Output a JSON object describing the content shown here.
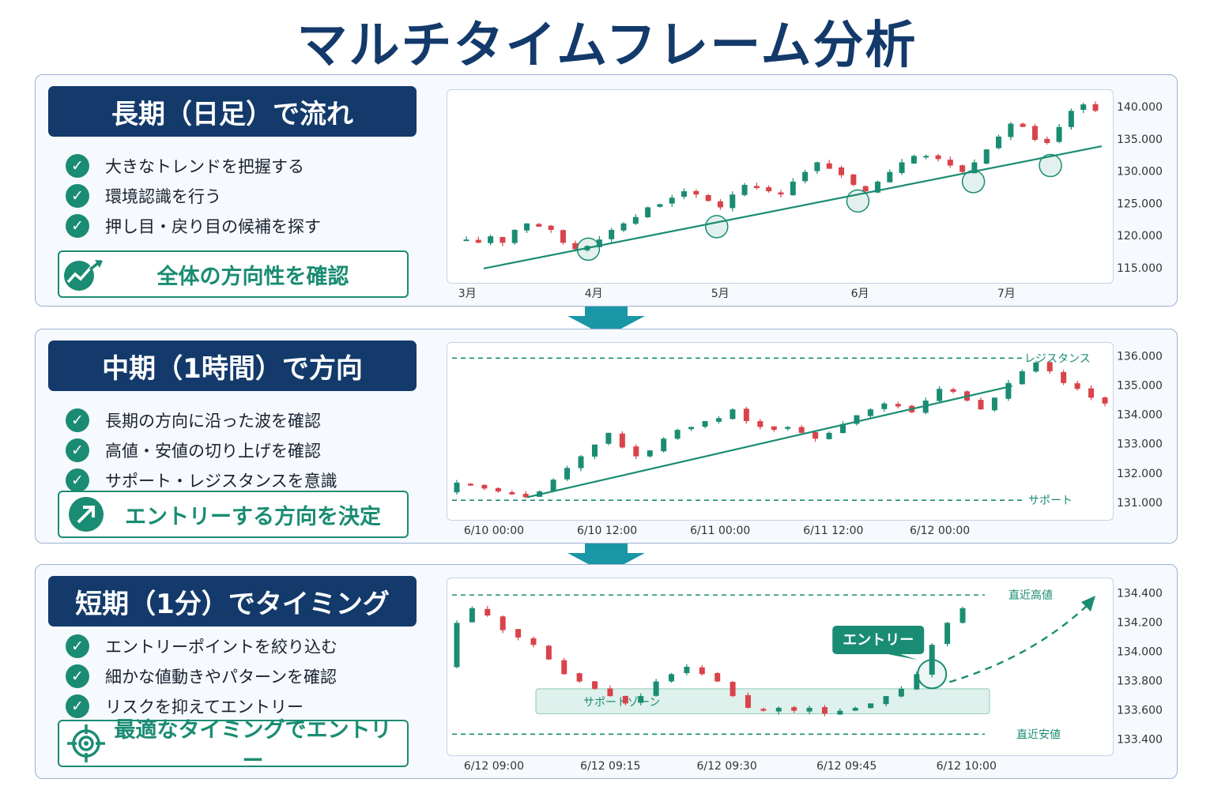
{
  "page": {
    "title": "マルチタイムフレーム分析"
  },
  "colors": {
    "navy": "#133a6b",
    "teal": "#1a8c73",
    "up": "#1a8c73",
    "down": "#d9434b"
  },
  "panels": [
    {
      "tag": "長期（日足）で流れ",
      "bullets": [
        "大きなトレンドを把握する",
        "環境認識を行う",
        "押し目・戻り目の候補を探す"
      ],
      "conclusion": {
        "label": "全体の方向性を確認",
        "icon": "trend-up-icon"
      }
    },
    {
      "tag": "中期（1時間）で方向",
      "bullets": [
        "長期の方向に沿った波を確認",
        "高値・安値の切り上げを確認",
        "サポート・レジスタンスを意識"
      ],
      "conclusion": {
        "label": "エントリーする方向を決定",
        "icon": "arrow-up-right-icon"
      }
    },
    {
      "tag": "短期（1分）でタイミング",
      "bullets": [
        "エントリーポイントを絞り込む",
        "細かな値動きやパターンを確認",
        "リスクを抑えてエントリー"
      ],
      "conclusion": {
        "label": "最適なタイミングでエントリー",
        "icon": "target-icon"
      }
    }
  ],
  "chart_data": [
    {
      "type": "candlestick",
      "timeframe": "daily",
      "x_labels": [
        "3月",
        "4月",
        "5月",
        "6月",
        "7月"
      ],
      "ylim": [
        114,
        141.5
      ],
      "y_ticks": [
        "115.000",
        "120.000",
        "125.000",
        "130.000",
        "135.000",
        "140.000"
      ],
      "y_tick_values": [
        115,
        120,
        125,
        130,
        135,
        140
      ],
      "close_path": [
        119.5,
        119,
        120,
        119,
        121,
        122,
        121.5,
        121,
        119,
        118,
        118.5,
        119.5,
        121,
        122,
        123,
        124.5,
        125,
        126,
        127,
        126.5,
        125.5,
        124.5,
        126.5,
        128,
        127.5,
        127,
        126.5,
        128.5,
        130,
        131.5,
        130.5,
        129.5,
        128,
        127,
        128.5,
        130,
        131.5,
        132.5,
        132.5,
        132,
        131,
        130,
        131.5,
        133.5,
        135.5,
        137.5,
        137,
        135,
        134.5,
        137,
        139.5,
        140.5,
        139.5
      ],
      "trendline": [
        [
          0,
          115
        ],
        [
          1,
          134
        ]
      ],
      "touch_points": [
        118,
        121.5,
        125.5,
        128.5,
        131
      ]
    },
    {
      "type": "candlestick",
      "timeframe": "1h",
      "x_labels": [
        "6/10 00:00",
        "6/10 12:00",
        "6/11 00:00",
        "6/11 12:00",
        "6/12 00:00"
      ],
      "ylim": [
        130.7,
        136.2
      ],
      "y_ticks": [
        "131.000",
        "132.000",
        "133.000",
        "134.000",
        "135.000",
        "136.000"
      ],
      "y_tick_values": [
        131,
        132,
        133,
        134,
        135,
        136
      ],
      "close_path": [
        131.7,
        131.6,
        131.5,
        131.4,
        131.3,
        131.2,
        131.4,
        131.8,
        132.2,
        132.6,
        133,
        133.4,
        132.9,
        132.6,
        132.8,
        133.2,
        133.5,
        133.6,
        133.8,
        133.9,
        134.2,
        133.8,
        133.6,
        133.5,
        133.6,
        133.4,
        133.2,
        133.4,
        133.7,
        134,
        134.2,
        134.4,
        134.3,
        134.1,
        134.5,
        134.9,
        134.8,
        134.5,
        134.2,
        134.6,
        135.1,
        135.5,
        135.8,
        135.5,
        135.1,
        134.9,
        134.6,
        134.4
      ],
      "trendline": [
        [
          0.08,
          131.2
        ],
        [
          0.85,
          135
        ]
      ],
      "resistance": {
        "value": 135.95,
        "label": "レジスタンス"
      },
      "support": {
        "value": 131.1,
        "label": "サポート"
      }
    },
    {
      "type": "candlestick",
      "timeframe": "1m",
      "x_labels": [
        "6/12 09:00",
        "6/12 09:15",
        "6/12 09:30",
        "6/12 09:45",
        "6/12 10:00"
      ],
      "ylim": [
        133.35,
        134.45
      ],
      "y_ticks": [
        "133.400",
        "133.600",
        "133.800",
        "134.000",
        "134.200",
        "134.400"
      ],
      "y_tick_values": [
        133.4,
        133.6,
        133.8,
        134,
        134.2,
        134.4
      ],
      "close_path": [
        134.2,
        134.3,
        134.25,
        134.15,
        134.1,
        134.05,
        133.95,
        133.85,
        133.8,
        133.75,
        133.7,
        133.65,
        133.7,
        133.8,
        133.85,
        133.9,
        133.85,
        133.8,
        133.7,
        133.62,
        133.6,
        133.62,
        133.6,
        133.62,
        133.58,
        133.6,
        133.62,
        133.65,
        133.7,
        133.75,
        133.85,
        134.05,
        134.2,
        134.3
      ],
      "recent_high": {
        "value": 134.39,
        "label": "直近高値"
      },
      "recent_low": {
        "value": 133.44,
        "label": "直近安値"
      },
      "support_zone": {
        "from": 133.58,
        "to": 133.75,
        "label": "サポートゾーン"
      },
      "entry_label": "エントリー"
    }
  ]
}
